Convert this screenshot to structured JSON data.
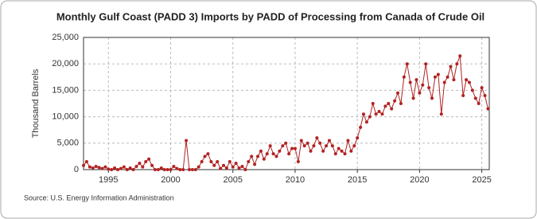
{
  "chart_data": {
    "type": "line",
    "title": "Monthly Gulf Coast (PADD 3) Imports by PADD of Processing from Canada of Crude Oil",
    "y_label": "Thousand Barrels",
    "source": "Source: U.S. Energy Information Administration",
    "color": "#b22222",
    "grid": true,
    "xlim": [
      1993,
      2025.6
    ],
    "xticks": [
      1995,
      2000,
      2005,
      2010,
      2015,
      2020,
      2025
    ],
    "ylim": [
      0,
      25000
    ],
    "yticks": [
      0,
      {
        "value": 5000,
        "label": "5,000"
      },
      {
        "value": 10000,
        "label": "10,000"
      },
      {
        "value": 15000,
        "label": "15,000"
      },
      {
        "value": 20000,
        "label": "20,000"
      },
      {
        "value": 25000,
        "label": "25,000"
      }
    ],
    "x": [
      1993,
      1993.25,
      1993.5,
      1993.75,
      1994,
      1994.25,
      1994.5,
      1994.75,
      1995,
      1995.25,
      1995.5,
      1995.75,
      1996,
      1996.25,
      1996.5,
      1996.75,
      1997,
      1997.25,
      1997.5,
      1997.75,
      1998,
      1998.25,
      1998.5,
      1998.75,
      1999,
      1999.25,
      1999.5,
      1999.75,
      2000,
      2000.25,
      2000.5,
      2000.75,
      2001,
      2001.25,
      2001.5,
      2001.75,
      2002,
      2002.25,
      2002.5,
      2002.75,
      2003,
      2003.25,
      2003.5,
      2003.75,
      2004,
      2004.25,
      2004.5,
      2004.75,
      2005,
      2005.25,
      2005.5,
      2005.75,
      2006,
      2006.25,
      2006.5,
      2006.75,
      2007,
      2007.25,
      2007.5,
      2007.75,
      2008,
      2008.25,
      2008.5,
      2008.75,
      2009,
      2009.25,
      2009.5,
      2009.75,
      2010,
      2010.25,
      2010.5,
      2010.75,
      2011,
      2011.25,
      2011.5,
      2011.75,
      2012,
      2012.25,
      2012.5,
      2012.75,
      2013,
      2013.25,
      2013.5,
      2013.75,
      2014,
      2014.25,
      2014.5,
      2014.75,
      2015,
      2015.25,
      2015.5,
      2015.75,
      2016,
      2016.25,
      2016.5,
      2016.75,
      2017,
      2017.25,
      2017.5,
      2017.75,
      2018,
      2018.25,
      2018.5,
      2018.75,
      2019,
      2019.25,
      2019.5,
      2019.75,
      2020,
      2020.25,
      2020.5,
      2020.75,
      2021,
      2021.25,
      2021.5,
      2021.75,
      2022,
      2022.25,
      2022.5,
      2022.75,
      2023,
      2023.25,
      2023.5,
      2023.75,
      2024,
      2024.25,
      2024.5,
      2024.75,
      2025,
      2025.25,
      2025.5
    ],
    "values": [
      800,
      1500,
      500,
      300,
      600,
      400,
      200,
      500,
      100,
      0,
      300,
      0,
      200,
      500,
      0,
      300,
      0,
      600,
      1200,
      500,
      1500,
      2000,
      800,
      0,
      0,
      300,
      0,
      0,
      0,
      600,
      200,
      0,
      0,
      5500,
      0,
      0,
      0,
      500,
      1500,
      2500,
      3000,
      1500,
      800,
      1500,
      200,
      800,
      300,
      1500,
      500,
      1200,
      300,
      600,
      0,
      1500,
      2500,
      1000,
      2500,
      3500,
      2000,
      3000,
      4500,
      3000,
      2500,
      3500,
      4500,
      5000,
      3000,
      4000,
      4000,
      1500,
      5500,
      4500,
      5000,
      3500,
      4500,
      6000,
      5000,
      3500,
      4500,
      5500,
      4500,
      3000,
      4000,
      3500,
      3000,
      5500,
      3500,
      4500,
      6000,
      8000,
      10500,
      9000,
      10000,
      12500,
      10500,
      11000,
      10500,
      12000,
      12500,
      11500,
      13000,
      14500,
      12500,
      17500,
      20000,
      16500,
      13500,
      17000,
      14500,
      16000,
      20000,
      15500,
      13500,
      17500,
      18000,
      10500,
      16500,
      17500,
      19500,
      17000,
      20000,
      21500,
      14000,
      17000,
      16500,
      15000,
      13500,
      12500,
      15500,
      14000,
      11500
    ]
  }
}
